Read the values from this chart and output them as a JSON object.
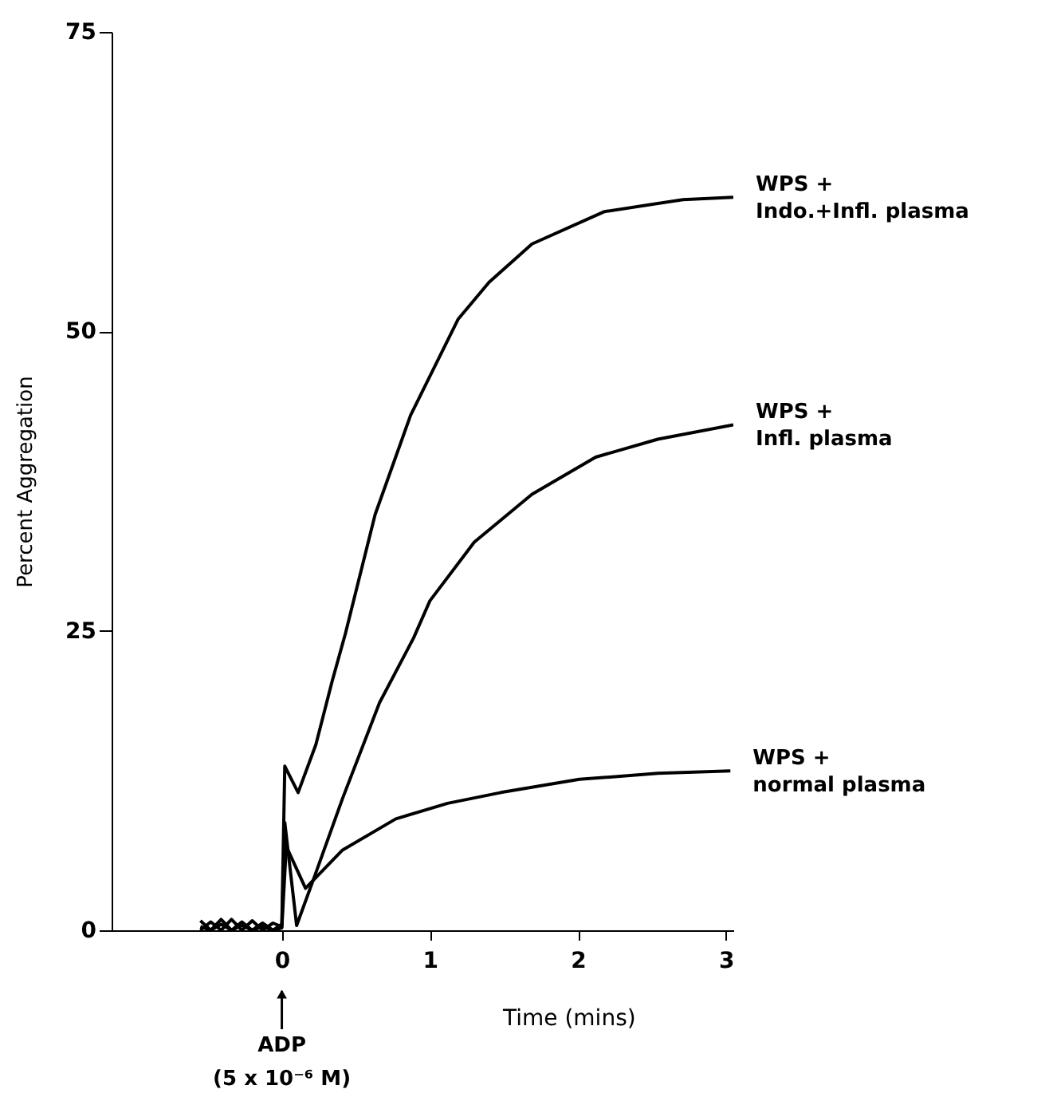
{
  "chart_data": {
    "type": "line",
    "xlabel": "Time (mins)",
    "ylabel": "Percent Aggregation",
    "xlim": [
      -1.15,
      3.05
    ],
    "ylim": [
      0,
      75
    ],
    "xticks": [
      0,
      1,
      2,
      3
    ],
    "yticks": [
      0,
      25,
      50,
      75
    ],
    "grid": false,
    "marker": "none",
    "line_style": "solid",
    "series": [
      {
        "name": "WPS +\nIndo.+Infl. plasma",
        "color": "#000000",
        "x": [
          -0.55,
          -0.48,
          -0.41,
          -0.34,
          -0.27,
          -0.2,
          -0.13,
          -0.06,
          0,
          0.02,
          0.11,
          0.23,
          0.34,
          0.43,
          0.63,
          0.87,
          1.05,
          1.19,
          1.4,
          1.69,
          2.18,
          2.71,
          3.05
        ],
        "values": [
          0.8,
          0,
          0.9,
          0,
          0.7,
          0,
          0.6,
          0,
          0.5,
          13.7,
          11.5,
          15.5,
          20.8,
          24.8,
          34.7,
          43,
          47.5,
          51,
          54.1,
          57.3,
          60,
          61,
          61.2
        ]
      },
      {
        "name": "WPS +\nInfl. plasma",
        "color": "#000000",
        "x": [
          -0.55,
          -0.48,
          -0.41,
          -0.34,
          -0.27,
          -0.2,
          -0.13,
          -0.06,
          0,
          0.02,
          0.1,
          0.23,
          0.41,
          0.66,
          0.89,
          1.0,
          1.3,
          1.69,
          2.12,
          2.54,
          3.05
        ],
        "values": [
          0,
          0.7,
          0,
          0.9,
          0,
          0.8,
          0,
          0.6,
          0.3,
          9,
          0.4,
          4.8,
          11,
          19,
          24.4,
          27.5,
          32.4,
          36.4,
          39.5,
          41,
          42.2
        ]
      },
      {
        "name": "WPS +\nnormal plasma",
        "color": "#000000",
        "x": [
          -0.55,
          -0.48,
          -0.41,
          -0.34,
          -0.27,
          -0.2,
          -0.13,
          -0.06,
          0,
          0.03,
          0.16,
          0.41,
          0.77,
          1.12,
          1.48,
          2.01,
          2.54,
          3.03
        ],
        "values": [
          0.3,
          0,
          0.5,
          0,
          0.4,
          0,
          0.3,
          0,
          0.2,
          7,
          3.5,
          6.7,
          9.3,
          10.6,
          11.5,
          12.6,
          13.1,
          13.3
        ]
      }
    ],
    "annotations": [
      {
        "text": "ADP",
        "x": 0
      },
      "(5 x 10⁻⁶ M)"
    ]
  }
}
